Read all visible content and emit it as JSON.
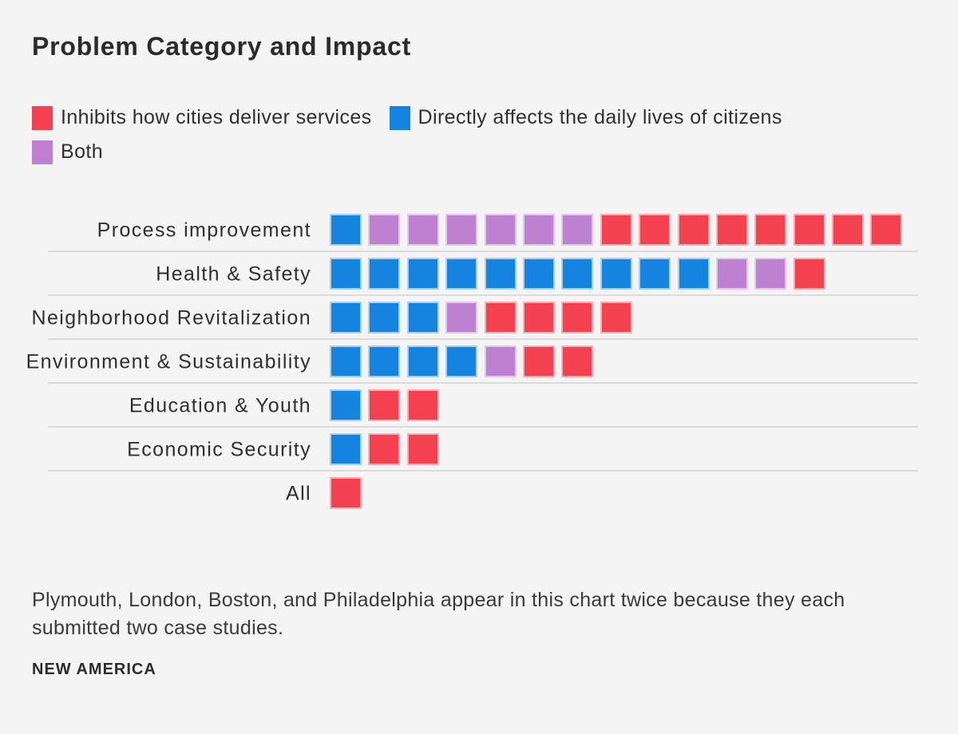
{
  "title": "Problem Category and Impact",
  "legend": {
    "items": [
      {
        "key": "inhibits",
        "label": "Inhibits how cities deliver services",
        "color": "#F4414F"
      },
      {
        "key": "directly_affects",
        "label": "Directly affects the daily lives of citizens",
        "color": "#1584E0"
      },
      {
        "key": "both",
        "label": "Both",
        "color": "#BE81D1"
      }
    ]
  },
  "colors": {
    "background": "#F4F4F4",
    "text": "#2F2F2F",
    "divider": "#DBDBDB",
    "inhibits_red": "#F4414F",
    "directly_affects_blue": "#1584E0",
    "both_purple": "#BE81D1"
  },
  "footnote": "Plymouth, London, Boston, and Philadelphia appear in this chart twice because they each submitted two case studies.",
  "source": "NEW AMERICA",
  "chart_data": {
    "type": "bar",
    "subtype": "unit-square-stacked-bar",
    "unit": "one case study",
    "legend_position": "top-left",
    "series_order": [
      "directly_affects",
      "both",
      "inhibits"
    ],
    "series_labels": {
      "inhibits": "Inhibits how cities deliver services",
      "directly_affects": "Directly affects the daily lives of citizens",
      "both": "Both"
    },
    "categories": [
      "Process improvement",
      "Health & Safety",
      "Neighborhood Revitalization",
      "Environment & Sustainability",
      "Education & Youth",
      "Economic Security",
      "All"
    ],
    "rows": [
      {
        "category": "Process improvement",
        "directly_affects": 1,
        "both": 6,
        "inhibits": 8,
        "total": 15
      },
      {
        "category": "Health & Safety",
        "directly_affects": 10,
        "both": 2,
        "inhibits": 1,
        "total": 13
      },
      {
        "category": "Neighborhood Revitalization",
        "directly_affects": 3,
        "both": 1,
        "inhibits": 4,
        "total": 8
      },
      {
        "category": "Environment & Sustainability",
        "directly_affects": 4,
        "both": 1,
        "inhibits": 2,
        "total": 7
      },
      {
        "category": "Education & Youth",
        "directly_affects": 1,
        "both": 0,
        "inhibits": 2,
        "total": 3
      },
      {
        "category": "Economic Security",
        "directly_affects": 1,
        "both": 0,
        "inhibits": 2,
        "total": 3
      },
      {
        "category": "All",
        "directly_affects": 0,
        "both": 0,
        "inhibits": 1,
        "total": 1
      }
    ]
  }
}
